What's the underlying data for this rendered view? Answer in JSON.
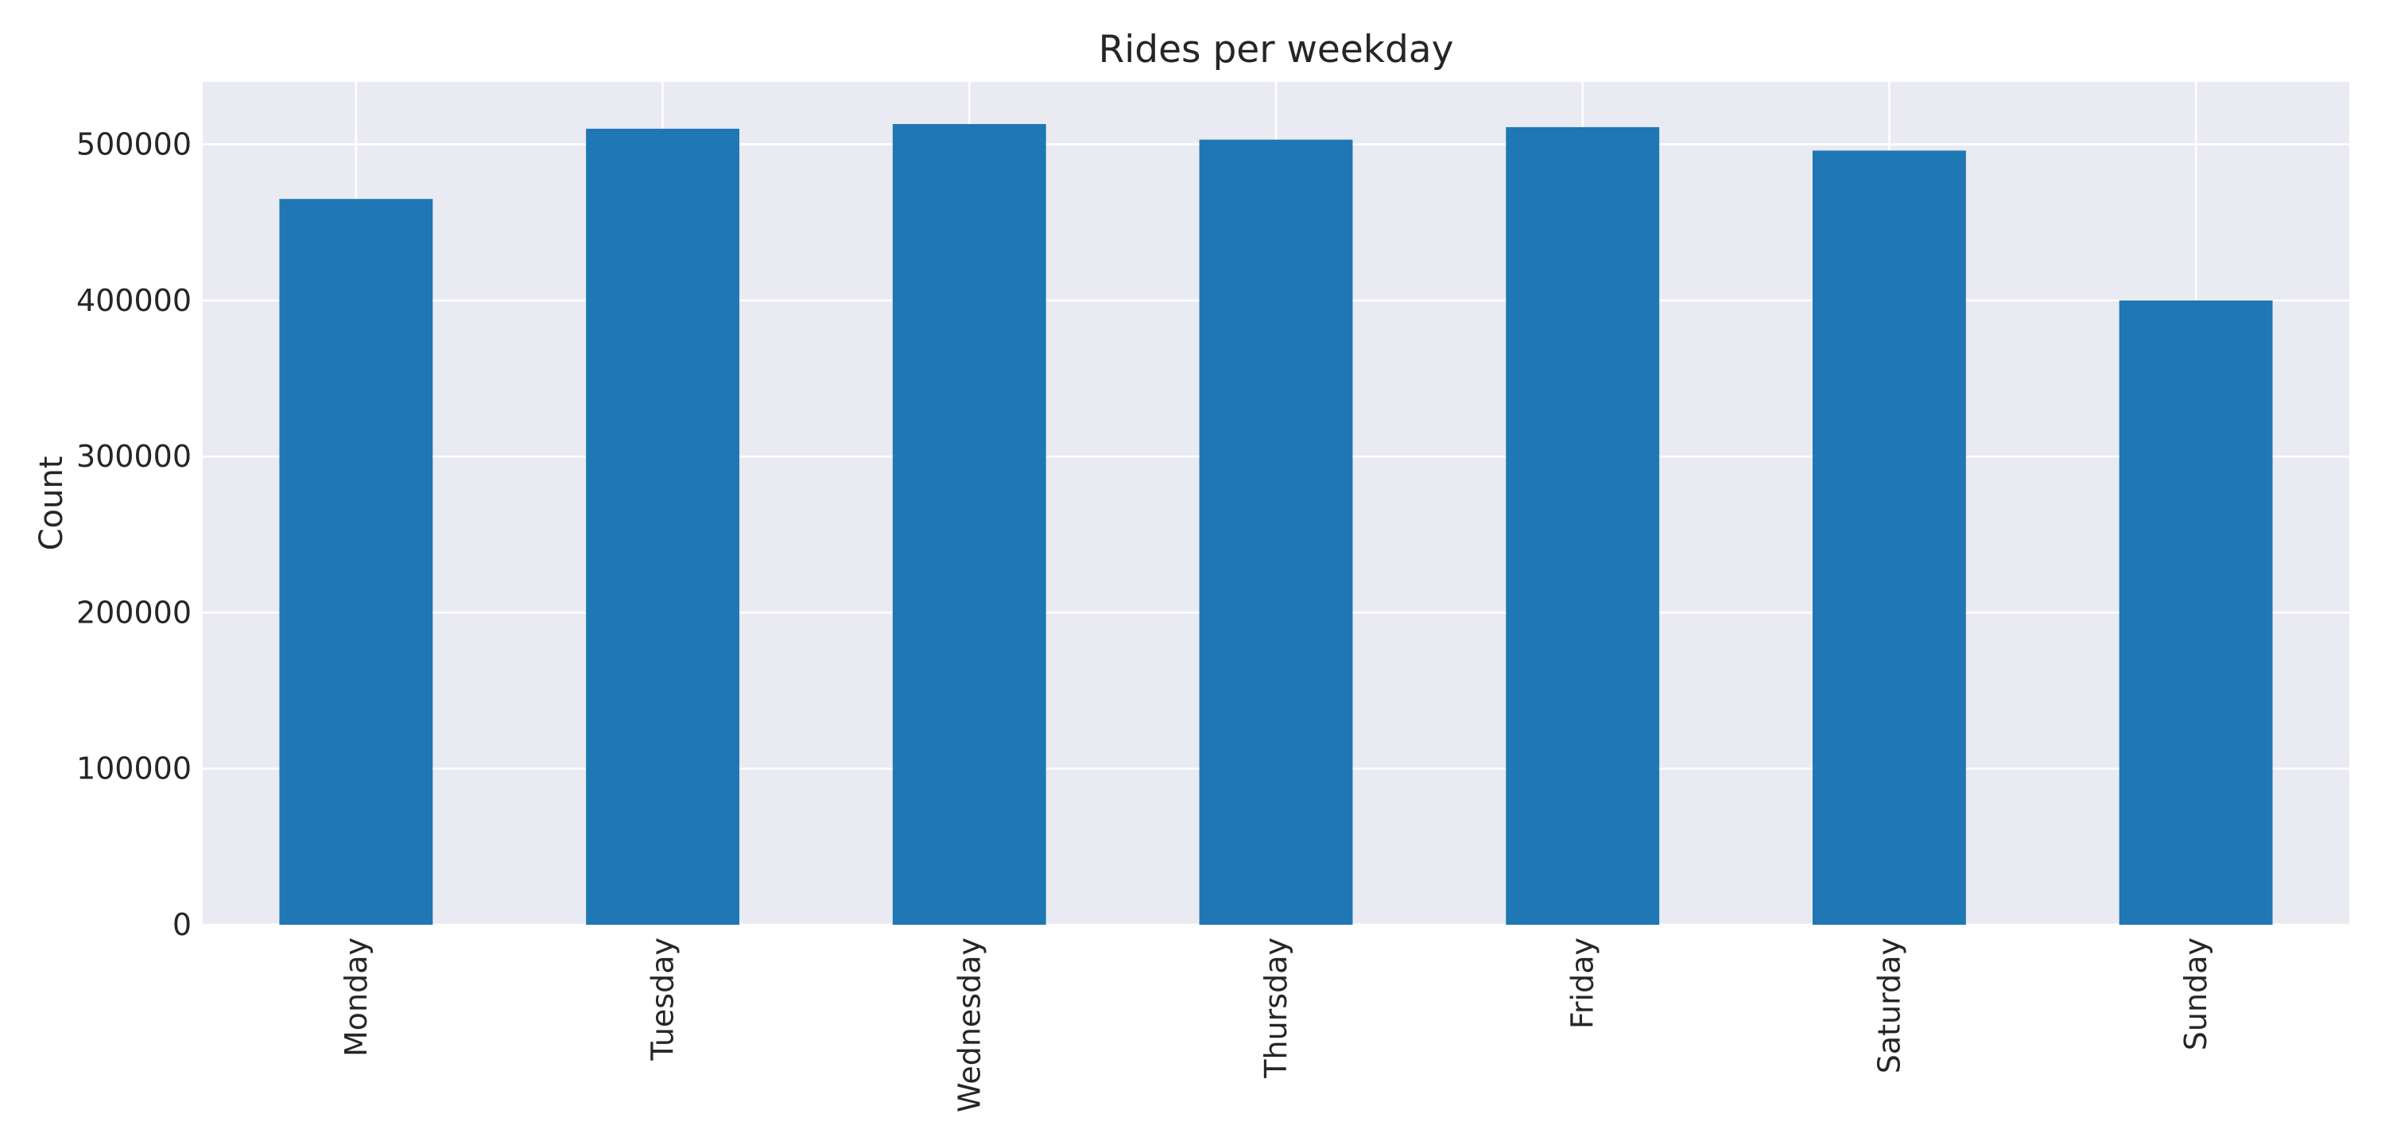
{
  "chart_data": {
    "type": "bar",
    "title": "Rides per weekday",
    "xlabel": "",
    "ylabel": "Count",
    "categories": [
      "Monday",
      "Tuesday",
      "Wednesday",
      "Thursday",
      "Friday",
      "Saturday",
      "Sunday"
    ],
    "values": [
      465000,
      510000,
      513000,
      503000,
      511000,
      496000,
      400000
    ],
    "ylim": [
      0,
      540000
    ],
    "yticks": [
      0,
      100000,
      200000,
      300000,
      400000,
      500000
    ],
    "ytick_labels": [
      "0",
      "100000",
      "200000",
      "300000",
      "400000",
      "500000"
    ],
    "grid": true,
    "legend": "none",
    "colors": {
      "bar": "#1f77b4",
      "plot_background": "#eaeaf2",
      "grid": "#ffffff",
      "text": "#262626"
    }
  }
}
